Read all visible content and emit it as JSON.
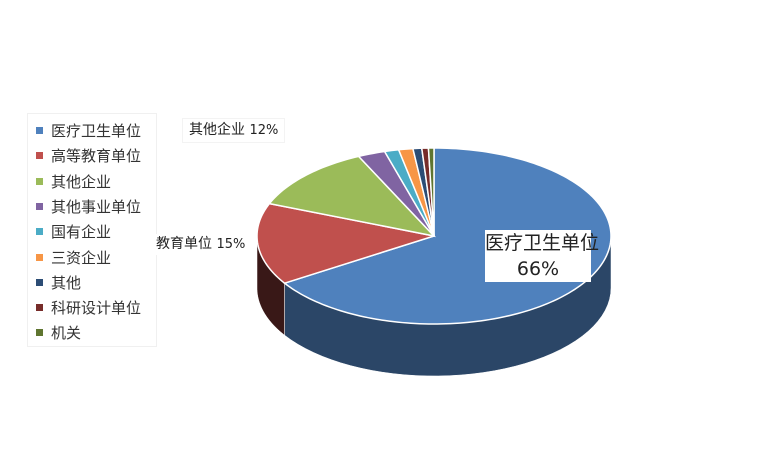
{
  "chart_data": {
    "type": "pie",
    "style": "3d",
    "legend_position": "left",
    "categories": [
      "医疗卫生单位",
      "高等教育单位",
      "其他企业",
      "其他事业单位",
      "国有企业",
      "三资企业",
      "其他",
      "科研设计单位",
      "机关"
    ],
    "values": [
      66,
      15,
      12,
      2.5,
      1.3,
      1.3,
      0.8,
      0.6,
      0.5
    ],
    "colors": [
      "#4f81bd",
      "#c0504d",
      "#9bbb59",
      "#8064a2",
      "#4bacc6",
      "#f79646",
      "#2c4d75",
      "#772c2a",
      "#5f7530"
    ],
    "data_labels": [
      {
        "name": "医疗卫生单位",
        "value": "66%"
      },
      {
        "name": "教育单位",
        "value": "15%"
      },
      {
        "name": "其他企业",
        "value": "12%"
      }
    ]
  }
}
